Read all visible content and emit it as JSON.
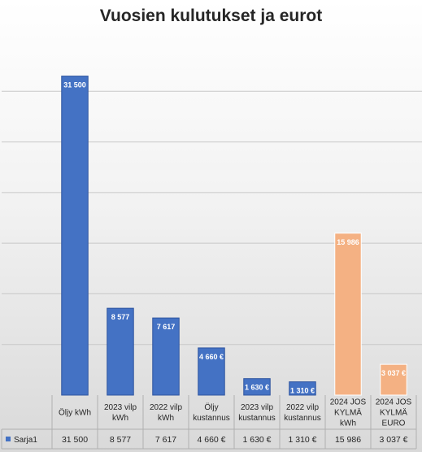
{
  "chart_data": {
    "type": "bar",
    "title": "Vuosien kulutukset ja eurot",
    "categories": [
      "Öljy kWh",
      "2023 vilp kWh",
      "2022 vilp kWh",
      "Öljy kustannus",
      "2023 vilp kustannus",
      "2022 vilp kustannus",
      "2024 JOS KYLMÄ kWh",
      "2024 JOS KYLMÄ EURO"
    ],
    "category_lines": [
      [
        "Öljy kWh"
      ],
      [
        "2023 vilp",
        "kWh"
      ],
      [
        "2022 vilp",
        "kWh"
      ],
      [
        "Öljy",
        "kustannus"
      ],
      [
        "2023 vilp",
        "kustannus"
      ],
      [
        "2022 vilp",
        "kustannus"
      ],
      [
        "2024 JOS",
        "KYLMÄ",
        "kWh"
      ],
      [
        "2024 JOS",
        "KYLMÄ",
        "EURO"
      ]
    ],
    "series": [
      {
        "name": "Sarja1",
        "values": [
          31500,
          8577,
          7617,
          4660,
          1630,
          1310,
          15986,
          3037
        ],
        "labels": [
          "31 500",
          "8 577",
          "7 617",
          "4 660 €",
          "1 630 €",
          "1 310 €",
          "15 986",
          "3 037 €"
        ]
      }
    ],
    "colors": [
      "#4472c4",
      "#4472c4",
      "#4472c4",
      "#4472c4",
      "#4472c4",
      "#4472c4",
      "#f4b183",
      "#f4b183"
    ],
    "ylim": [
      0,
      35000
    ],
    "grid": true,
    "legend": "data-table",
    "data_table": true
  }
}
